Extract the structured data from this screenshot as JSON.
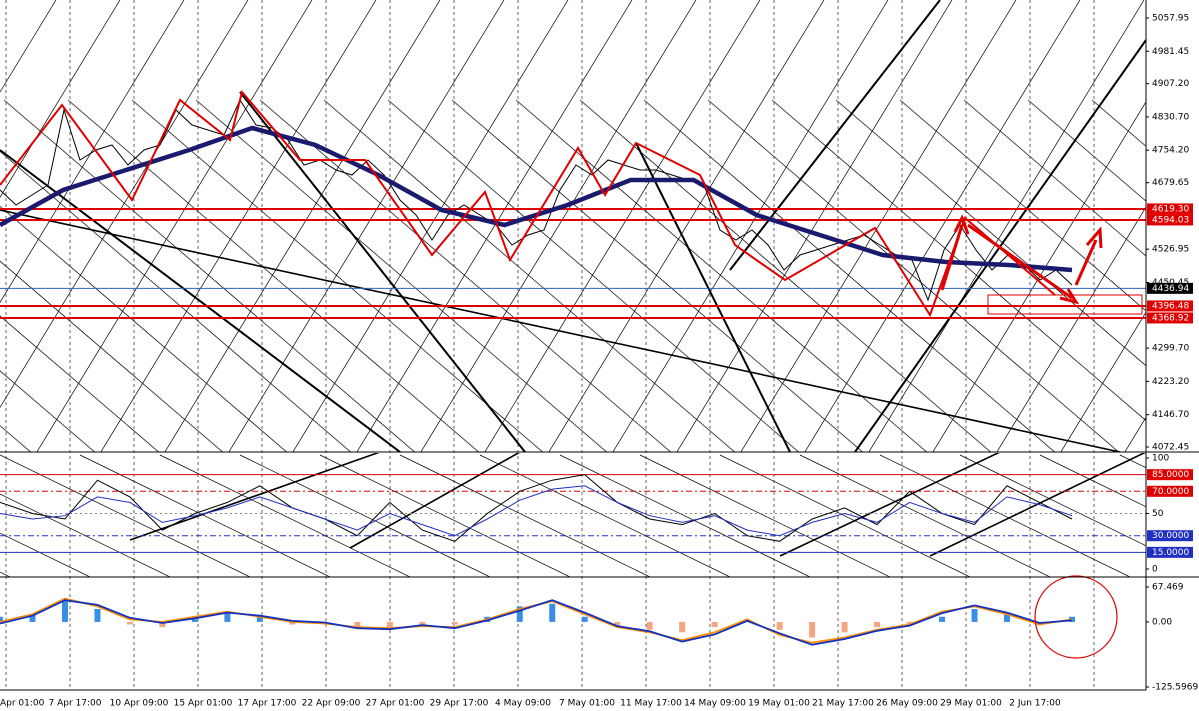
{
  "chart_data": [
    {
      "type": "line",
      "ylim": [
        4061.0,
        5099.3
      ],
      "yticks": [
        5057.95,
        4981.45,
        {
          "value": 4907.2,
          "label": "4907.20"
        },
        {
          "value": 4830.7,
          "label": "4830.70"
        },
        {
          "value": 4754.2,
          "label": "4754.20"
        },
        4679.65,
        4526.95,
        4450.45,
        {
          "value": 4299.7,
          "label": "4299.70"
        },
        {
          "value": 4223.2,
          "label": "4223.20"
        },
        {
          "value": 4146.7,
          "label": "4146.70"
        },
        4072.45
      ],
      "series": [
        {
          "color": "#000000",
          "values": [
            4662.9,
            4628.4,
            4651.4,
            4674.3,
            4846.6,
            4731.8,
            4754.8,
            4766.2,
            4720.3,
            4754.8,
            4766.2,
            4846.6,
            4812.2,
            4800.7,
            4789.2,
            4869.6,
            4812.2,
            4805.3,
            4777.7,
            4720.3,
            4731.8,
            4708.8,
            4697.3,
            4731.8,
            4697.3,
            4639.9,
            4605.4,
            4548.0,
            4605.4,
            4628.4,
            4605.4,
            4582.5,
            4536.5,
            4559.5,
            4571.0,
            4662.9,
            4720.3,
            4697.3,
            4731.8,
            4720.3,
            4708.8,
            4708.8,
            4697.3,
            4685.8,
            4674.3,
            4571.0,
            4548.0,
            4571.0,
            4536.5,
            4479.1,
            4513.6,
            4525.0,
            4536.5,
            4548.0,
            4559.5,
            4536.5,
            4513.6,
            4502.1,
            4410.2,
            4525.0,
            4582.5,
            4525.0,
            4479.1,
            4513.6,
            4490.6,
            4456.1,
            4479.1,
            4444.7
          ]
        },
        {
          "color": "#1a1a6e",
          "values": [
            4582.5,
            4662.9,
            4708.8,
            4754.8,
            4805.3,
            4766.2,
            4697.3,
            4616.9,
            4582.5,
            4628.4,
            4685.8,
            4685.8,
            4605.4,
            4559.5,
            4513.6,
            4497.5,
            4490.6,
            4479.1
          ]
        }
      ],
      "levels": [
        {
          "value": 4619.3,
          "label": "4619.30",
          "color": "#e00000"
        },
        {
          "value": 4594.03,
          "label": "4594.03",
          "color": "#e00000"
        },
        {
          "value": 4436.94,
          "label": "4436.94",
          "color": "#3060c0"
        },
        {
          "value": 4396.48,
          "label": "4396.48",
          "color": "#e00000"
        },
        {
          "value": 4368.92,
          "label": "4368.92",
          "color": "#e00000"
        }
      ]
    },
    {
      "type": "line",
      "ylim": [
        0,
        100
      ],
      "yticks": [
        100,
        50,
        0
      ],
      "series": [
        {
          "color": "#000000",
          "values": [
            60,
            50,
            45,
            80,
            65,
            35,
            50,
            60,
            75,
            55,
            45,
            30,
            60,
            35,
            25,
            50,
            70,
            80,
            85,
            60,
            45,
            40,
            50,
            30,
            25,
            45,
            55,
            40,
            70,
            50,
            40,
            75,
            60,
            45
          ]
        },
        {
          "color": "#2030c0",
          "values": [
            50,
            45,
            48,
            65,
            60,
            42,
            48,
            55,
            65,
            55,
            45,
            35,
            50,
            40,
            30,
            45,
            62,
            72,
            75,
            60,
            48,
            42,
            48,
            35,
            30,
            42,
            50,
            42,
            60,
            50,
            42,
            65,
            58,
            48
          ]
        }
      ],
      "levels": [
        {
          "value": 85,
          "label": "85.0000",
          "color": "#e00000"
        },
        {
          "value": 70,
          "label": "70.0000",
          "color": "#e00000"
        },
        {
          "value": 30,
          "label": "30.0000",
          "color": "#2030c0"
        },
        {
          "value": 15,
          "label": "15.0000",
          "color": "#2030c0"
        }
      ]
    },
    {
      "type": "bar",
      "ylim": [
        -125.5969,
        67.469
      ],
      "yticks": [
        67.469,
        {
          "value": 0,
          "label": "0.00"
        },
        -125.5969
      ],
      "color": "#3a8ee6",
      "negative_color": "#f4a582",
      "values": [
        10,
        15,
        40,
        25,
        -5,
        -10,
        5,
        20,
        10,
        -5,
        -5,
        -10,
        -15,
        -10,
        -5,
        10,
        30,
        35,
        10,
        -10,
        -15,
        -20,
        -10,
        5,
        -15,
        -30,
        -20,
        -10,
        -5,
        10,
        25,
        15,
        -5,
        10
      ],
      "series": [
        {
          "color": "#ff8c00",
          "values": [
            0,
            15,
            45,
            30,
            5,
            0,
            10,
            20,
            10,
            0,
            -3,
            -10,
            -12,
            -8,
            -10,
            5,
            25,
            40,
            15,
            -10,
            -20,
            -35,
            -20,
            5,
            -25,
            -40,
            -30,
            -15,
            -5,
            20,
            30,
            15,
            -5,
            5
          ]
        },
        {
          "color": "#1030c0",
          "values": [
            -3,
            12,
            42,
            33,
            8,
            -2,
            7,
            18,
            12,
            2,
            -1,
            -12,
            -14,
            -6,
            -12,
            3,
            22,
            42,
            18,
            -8,
            -18,
            -38,
            -24,
            2,
            -22,
            -44,
            -33,
            -17,
            -7,
            17,
            32,
            18,
            -2,
            3
          ]
        }
      ],
      "xtick_labels": [
        "Apr 01:00",
        "7 Apr 17:00",
        "10 Apr 09:00",
        "15 Apr 01:00",
        "17 Apr 17:00",
        "22 Apr 09:00",
        "27 Apr 01:00",
        "29 Apr 17:00",
        "4 May 09:00",
        "7 May 01:00",
        "11 May 17:00",
        "14 May 09:00",
        "19 May 01:00",
        "21 May 17:00",
        "26 May 09:00",
        "29 May 01:00",
        "2 Jun 17:00"
      ]
    }
  ]
}
